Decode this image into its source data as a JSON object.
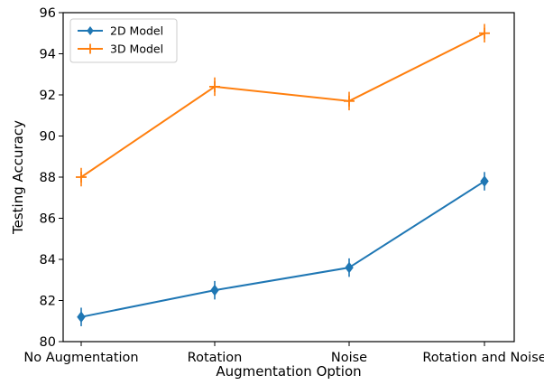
{
  "chart_data": {
    "type": "line",
    "title": "",
    "xlabel": "Augmentation Option",
    "ylabel": "Testing Accuracy",
    "categories": [
      "No Augmentation",
      "Rotation",
      "Noise",
      "Rotation and Noise"
    ],
    "ylim": [
      80,
      96
    ],
    "yticks": [
      80,
      82,
      84,
      86,
      88,
      90,
      92,
      94,
      96
    ],
    "grid": false,
    "legend_position": "top-left",
    "series": [
      {
        "name": "2D Model",
        "color": "#1f77b4",
        "marker": "diamond",
        "values": [
          81.2,
          82.5,
          83.6,
          87.8
        ],
        "errors": [
          0.45,
          0.45,
          0.45,
          0.45
        ]
      },
      {
        "name": "3D Model",
        "color": "#ff7f0e",
        "marker": "plus",
        "values": [
          88.0,
          92.4,
          91.7,
          95.0
        ],
        "errors": [
          0.45,
          0.45,
          0.45,
          0.45
        ]
      }
    ]
  }
}
